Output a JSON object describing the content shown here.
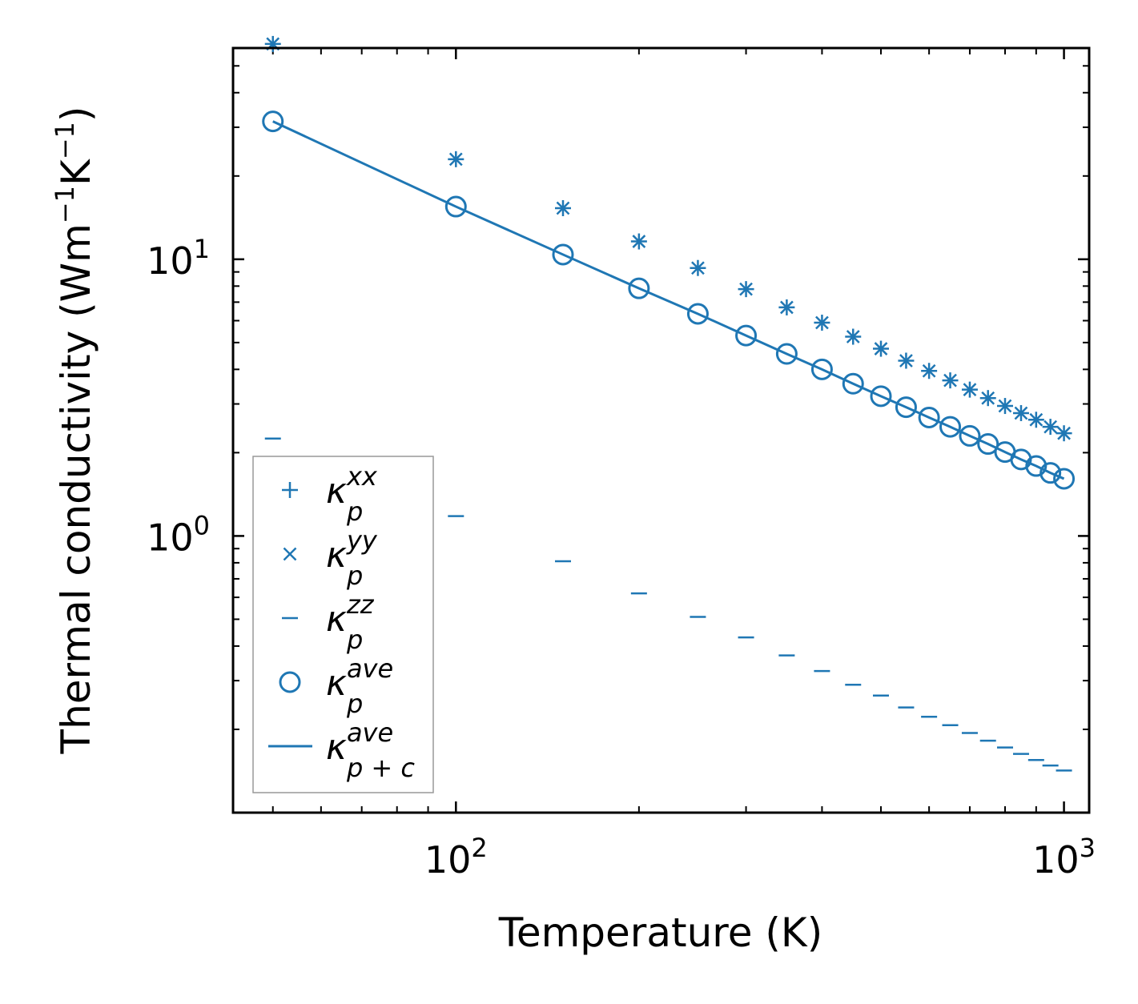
{
  "chart_data": {
    "type": "scatter",
    "xscale": "log",
    "yscale": "log",
    "xlabel": "Temperature (K)",
    "ylabel": {
      "text": "Thermal conductivity (Wm",
      "sup1": "−1",
      "mid": "K",
      "sup2": "−1",
      "end": ")"
    },
    "xlim": [
      43,
      1100
    ],
    "ylim": [
      0.1,
      58
    ],
    "xticks": [
      {
        "value": 100,
        "base": "10",
        "exp": "2"
      },
      {
        "value": 1000,
        "base": "10",
        "exp": "3"
      }
    ],
    "yticks": [
      {
        "value": 1,
        "base": "10",
        "exp": "0"
      },
      {
        "value": 10,
        "base": "10",
        "exp": "1"
      }
    ],
    "color": "#1f77b4",
    "x": [
      50,
      100,
      150,
      200,
      250,
      300,
      350,
      400,
      450,
      500,
      550,
      600,
      650,
      700,
      750,
      800,
      850,
      900,
      950,
      1000
    ],
    "series": [
      {
        "name": "kappa_p_xx",
        "marker": "plus",
        "legend_main": "κ",
        "legend_sub": "p",
        "legend_sup": "xx",
        "values": [
          60,
          23.0,
          15.3,
          11.6,
          9.3,
          7.8,
          6.7,
          5.9,
          5.25,
          4.75,
          4.3,
          3.95,
          3.65,
          3.38,
          3.15,
          2.95,
          2.78,
          2.63,
          2.48,
          2.35
        ]
      },
      {
        "name": "kappa_p_yy",
        "marker": "x",
        "legend_main": "κ",
        "legend_sub": "p",
        "legend_sup": "yy",
        "values": [
          60,
          23.0,
          15.3,
          11.6,
          9.3,
          7.8,
          6.7,
          5.9,
          5.25,
          4.75,
          4.3,
          3.95,
          3.65,
          3.38,
          3.15,
          2.95,
          2.78,
          2.63,
          2.48,
          2.35
        ]
      },
      {
        "name": "kappa_p_zz",
        "marker": "hline",
        "legend_main": "κ",
        "legend_sub": "p",
        "legend_sup": "zz",
        "values": [
          2.25,
          1.18,
          0.81,
          0.62,
          0.51,
          0.43,
          0.37,
          0.325,
          0.29,
          0.265,
          0.24,
          0.222,
          0.207,
          0.194,
          0.182,
          0.172,
          0.163,
          0.155,
          0.148,
          0.142
        ]
      },
      {
        "name": "kappa_p_ave",
        "marker": "circle",
        "legend_main": "κ",
        "legend_sub": "p",
        "legend_sup": "ave",
        "values": [
          31.5,
          15.5,
          10.4,
          7.85,
          6.35,
          5.3,
          4.55,
          4.0,
          3.55,
          3.2,
          2.92,
          2.68,
          2.48,
          2.3,
          2.15,
          2.01,
          1.89,
          1.79,
          1.69,
          1.61
        ]
      },
      {
        "name": "kappa_pc_ave",
        "marker": "line",
        "legend_main": "κ",
        "legend_sub": "p + c",
        "legend_sup": "ave",
        "values": [
          31.5,
          15.5,
          10.4,
          7.85,
          6.35,
          5.3,
          4.55,
          4.0,
          3.55,
          3.2,
          2.92,
          2.68,
          2.48,
          2.3,
          2.15,
          2.01,
          1.89,
          1.79,
          1.69,
          1.61
        ]
      }
    ],
    "legend_position": "lower-left",
    "grid": false
  }
}
